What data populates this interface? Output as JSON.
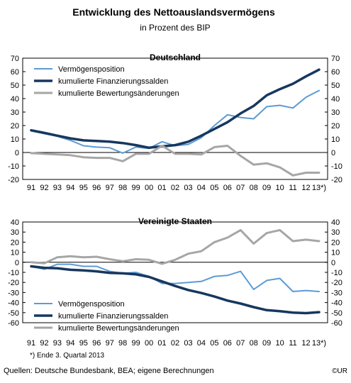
{
  "title": "Entwicklung  des Nettoauslandsvermögens",
  "subtitle": "in Prozent des BIP",
  "footnote": "*) Ende 3. Quartal 2013",
  "source": "Quellen: Deutsche Bundesbank, BEA; eigene Berechnungen",
  "copyright": "©UR",
  "colors": {
    "vermoegensposition": "#5b9bd5",
    "finanzierungssalden": "#17375e",
    "bewertungsaenderungen": "#a6a6a6"
  },
  "chart_data": [
    {
      "type": "line",
      "title": "Deutschland",
      "categories": [
        "91",
        "92",
        "93",
        "94",
        "95",
        "96",
        "97",
        "98",
        "99",
        "00",
        "01",
        "02",
        "03",
        "04",
        "05",
        "06",
        "07",
        "08",
        "09",
        "10",
        "11",
        "12",
        "13*)"
      ],
      "ylim": [
        -20,
        70
      ],
      "yticks": [
        -20,
        -10,
        0,
        10,
        20,
        30,
        40,
        50,
        60,
        70
      ],
      "grid": false,
      "legend_position": "top-left",
      "series": [
        {
          "name": "Vermögensposition",
          "color_key": "vermoegensposition",
          "values": [
            16,
            14,
            12,
            9,
            5,
            4,
            3.5,
            -0.5,
            4,
            3,
            8,
            5,
            6,
            11,
            20,
            28,
            26,
            25,
            34,
            35,
            33,
            41,
            46
          ]
        },
        {
          "name": "kumulierte Finanzierungssalden",
          "color_key": "finanzierungssalden",
          "values": [
            16.5,
            14.5,
            12.5,
            10.5,
            9,
            8.5,
            8,
            7,
            5.5,
            3.5,
            4.5,
            5.5,
            8,
            12.5,
            17.5,
            22.5,
            29,
            34.5,
            42.5,
            47,
            51,
            56.5,
            61.5
          ]
        },
        {
          "name": "kumulierte Bewertungsänderungen",
          "color_key": "bewertungsaenderungen",
          "values": [
            -0.5,
            -1,
            -1.5,
            -2,
            -3.5,
            -4,
            -4,
            -6.5,
            -1,
            -1,
            5,
            -1,
            -1,
            -1.5,
            4,
            5,
            -2.5,
            -9,
            -8,
            -11,
            -17,
            -15,
            -15
          ]
        }
      ]
    },
    {
      "type": "line",
      "title": "Vereinigte Staaten",
      "categories": [
        "91",
        "92",
        "93",
        "94",
        "95",
        "96",
        "97",
        "98",
        "99",
        "00",
        "01",
        "02",
        "03",
        "04",
        "05",
        "06",
        "07",
        "08",
        "09",
        "10",
        "11",
        "12",
        "13*)"
      ],
      "ylim": [
        -60,
        40
      ],
      "yticks": [
        -60,
        -50,
        -40,
        -30,
        -20,
        -10,
        0,
        10,
        20,
        30,
        40
      ],
      "grid": false,
      "legend_position": "bottom-left",
      "series": [
        {
          "name": "Vermögensposition",
          "color_key": "vermoegensposition",
          "values": [
            -4,
            -7,
            -2,
            -2,
            -4,
            -4,
            -9,
            -11,
            -10,
            -14,
            -21,
            -21,
            -20,
            -19,
            -14,
            -13,
            -9,
            -27,
            -18,
            -16,
            -29,
            -28,
            -29
          ]
        },
        {
          "name": "kumulierte Finanzierungssalden",
          "color_key": "finanzierungssalden",
          "values": [
            -4,
            -5.5,
            -6,
            -7.5,
            -8,
            -9,
            -10.5,
            -11,
            -12,
            -14.5,
            -19,
            -23.5,
            -27.5,
            -30.5,
            -34,
            -38,
            -41,
            -44.5,
            -47.5,
            -48.5,
            -50,
            -50.5,
            -49.5
          ]
        },
        {
          "name": "kumulierte Bewertungsänderungen",
          "color_key": "bewertungsaenderungen",
          "values": [
            0,
            -1,
            5,
            6,
            5,
            5.5,
            3,
            1,
            3,
            2.5,
            -1.5,
            2.5,
            8.5,
            11,
            20,
            24.5,
            32,
            18.5,
            29,
            32,
            21,
            22.5,
            21
          ]
        }
      ]
    }
  ]
}
